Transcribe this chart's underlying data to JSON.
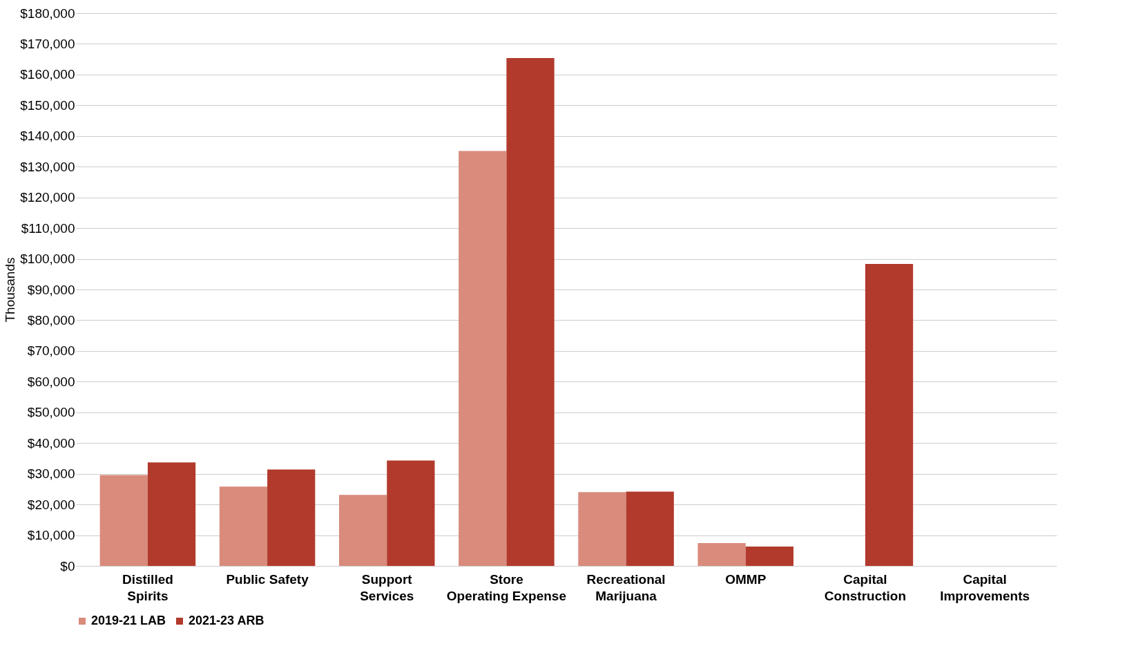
{
  "chart_data": {
    "type": "bar",
    "ylabel": "Thousands",
    "categories": [
      "Distilled Spirits",
      "Public Safety",
      "Support Services",
      "Store Operating Expense",
      "Recreational Marijuana",
      "OMMP",
      "Capital Construction",
      "Capital Improvements"
    ],
    "series": [
      {
        "name": "2019-21 LAB",
        "color": "#d98b7c",
        "values": [
          29600,
          25800,
          23100,
          135100,
          24000,
          7400,
          0,
          0
        ]
      },
      {
        "name": "2021-23 ARB",
        "color": "#b23a2c",
        "values": [
          33700,
          31400,
          34300,
          165400,
          24200,
          6300,
          98300,
          0
        ]
      }
    ],
    "ylim": [
      0,
      180000
    ],
    "yticks": [
      {
        "value": 0,
        "label": "$0"
      },
      {
        "value": 10000,
        "label": "$10,000"
      },
      {
        "value": 20000,
        "label": "$20,000"
      },
      {
        "value": 30000,
        "label": "$30,000"
      },
      {
        "value": 40000,
        "label": "$40,000"
      },
      {
        "value": 50000,
        "label": "$50,000"
      },
      {
        "value": 60000,
        "label": "$60,000"
      },
      {
        "value": 70000,
        "label": "$70,000"
      },
      {
        "value": 80000,
        "label": "$80,000"
      },
      {
        "value": 90000,
        "label": "$90,000"
      },
      {
        "value": 100000,
        "label": "$100,000"
      },
      {
        "value": 110000,
        "label": "$110,000"
      },
      {
        "value": 120000,
        "label": "$120,000"
      },
      {
        "value": 130000,
        "label": "$130,000"
      },
      {
        "value": 140000,
        "label": "$140,000"
      },
      {
        "value": 150000,
        "label": "$150,000"
      },
      {
        "value": 160000,
        "label": "$160,000"
      },
      {
        "value": 170000,
        "label": "$170,000"
      },
      {
        "value": 180000,
        "label": "$180,000"
      }
    ],
    "grid": "y",
    "legend": "bottom"
  }
}
